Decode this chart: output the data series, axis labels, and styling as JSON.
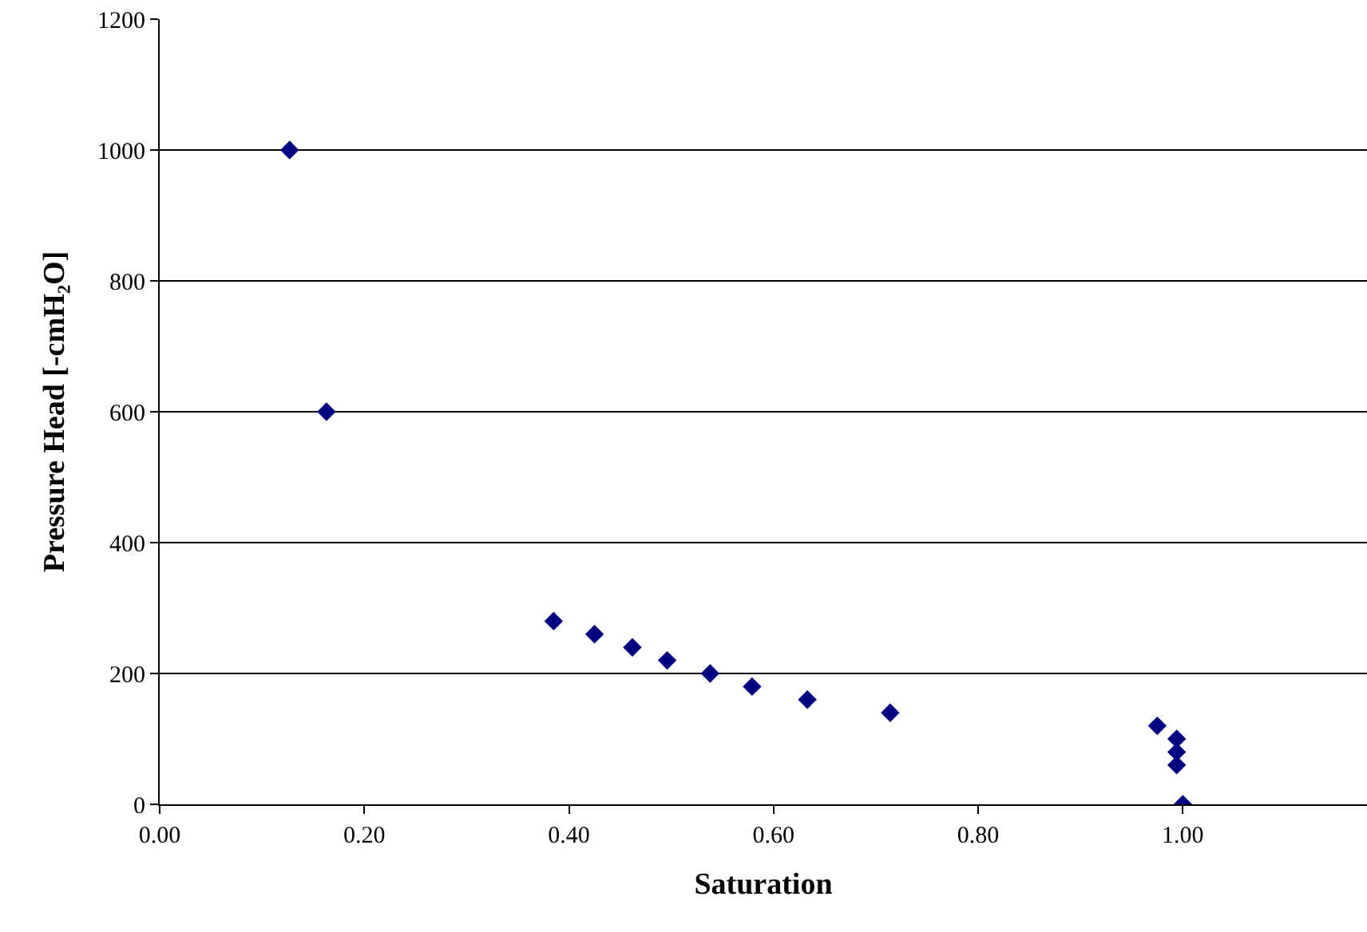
{
  "chart_data": {
    "type": "scatter",
    "xlabel": "Saturation",
    "ylabel": "Pressure Head [-cmH₂O]",
    "x": [
      0.127,
      0.163,
      0.385,
      0.425,
      0.462,
      0.496,
      0.538,
      0.579,
      0.633,
      0.714,
      0.975,
      0.994,
      0.994,
      0.994,
      1.0
    ],
    "series": [
      {
        "color": "#000080",
        "values": [
          1000,
          600,
          280,
          260,
          240,
          220,
          200,
          180,
          160,
          140,
          120,
          100,
          80,
          60,
          0
        ]
      }
    ],
    "xlim": [
      0,
      1.18
    ],
    "xticks": [
      {
        "value": 0,
        "label": "0.00"
      },
      {
        "value": 0.2,
        "label": "0.20"
      },
      {
        "value": 0.4,
        "label": "0.40"
      },
      {
        "value": 0.6,
        "label": "0.60"
      },
      {
        "value": 0.8,
        "label": "0.80"
      },
      {
        "value": 1.0,
        "label": "1.00"
      }
    ],
    "ylim": [
      0,
      1200
    ],
    "yticks": [
      0,
      200,
      400,
      600,
      800,
      1000,
      1200
    ],
    "grid": "y",
    "marker": "diamond"
  }
}
